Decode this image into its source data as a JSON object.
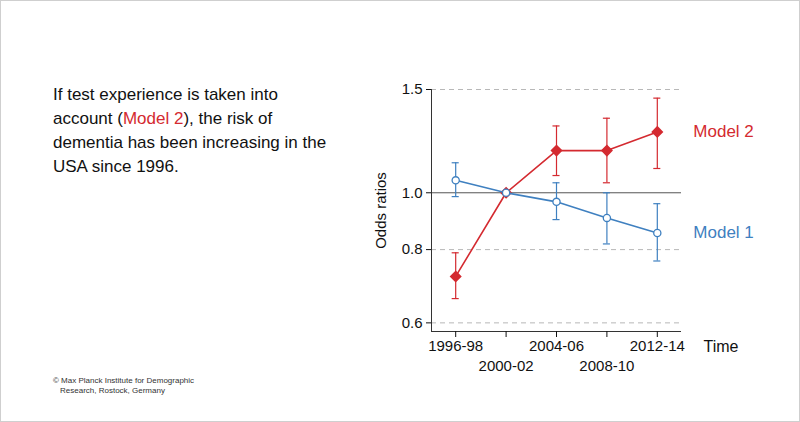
{
  "chart_data": {
    "type": "line",
    "annotation": [
      "If test experience is taken into account (",
      "Model 2",
      "), the risk of dementia has been increasing in the USA since 1996."
    ],
    "source": "© Max Planck Institute for Demographic Research, Rostock, Germany",
    "y_label": "Odds ratios",
    "x_label": "Time",
    "categories": [
      "1996-98",
      "2000-02",
      "2004-06",
      "2008-10",
      "2012-14"
    ],
    "log": "y",
    "grid": true,
    "ylim": [
      0.58,
      1.5
    ],
    "yticks": [
      0.6,
      0.8,
      {
        "value": 1,
        "label": "1.0"
      },
      1.5
    ],
    "series": [
      {
        "name": "Model 2",
        "color": "#d42a30",
        "marker": "diamond",
        "values": [
          0.72,
          1,
          1.18,
          1.18,
          1.27
        ],
        "lower": [
          0.66,
          null,
          1.07,
          1.04,
          1.1
        ],
        "upper": [
          0.79,
          null,
          1.3,
          1.34,
          1.45
        ]
      },
      {
        "name": "Model 1",
        "color": "#3f80c0",
        "marker": "open-circle",
        "values": [
          1.05,
          1,
          0.965,
          0.906,
          0.854
        ],
        "lower": [
          0.985,
          null,
          0.9,
          0.818,
          0.765
        ],
        "upper": [
          1.125,
          null,
          1.04,
          1,
          0.958
        ]
      }
    ]
  }
}
